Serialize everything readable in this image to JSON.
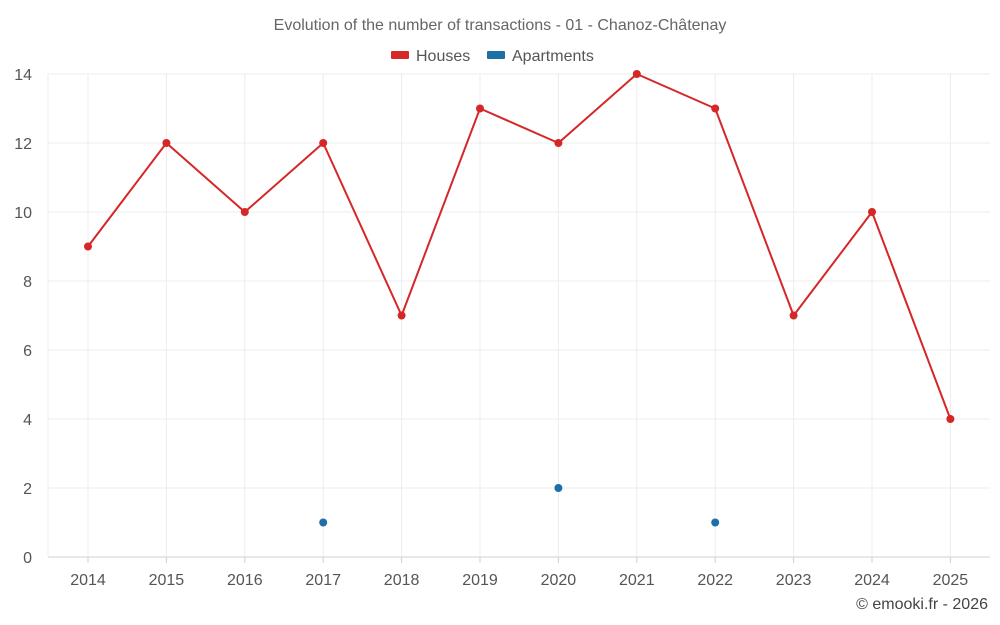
{
  "chart_data": {
    "type": "line",
    "title": "Evolution of the number of transactions - 01 - Chanoz-Châtenay",
    "categories": [
      "2014",
      "2015",
      "2016",
      "2017",
      "2018",
      "2019",
      "2020",
      "2021",
      "2022",
      "2023",
      "2024",
      "2025"
    ],
    "series": [
      {
        "name": "Houses",
        "color": "#d62728",
        "values": [
          9,
          12,
          10,
          12,
          7,
          13,
          12,
          14,
          13,
          7,
          10,
          4
        ]
      },
      {
        "name": "Apartments",
        "color": "#1f6ea8",
        "values": [
          null,
          null,
          null,
          1,
          null,
          null,
          2,
          null,
          1,
          null,
          null,
          null
        ]
      }
    ],
    "ylim": [
      0,
      14
    ],
    "yticks": [
      0,
      2,
      4,
      6,
      8,
      10,
      12,
      14
    ],
    "grid": true,
    "legend_position": "top-center",
    "xlabel": "",
    "ylabel": ""
  },
  "credit": "© emooki.fr - 2026"
}
